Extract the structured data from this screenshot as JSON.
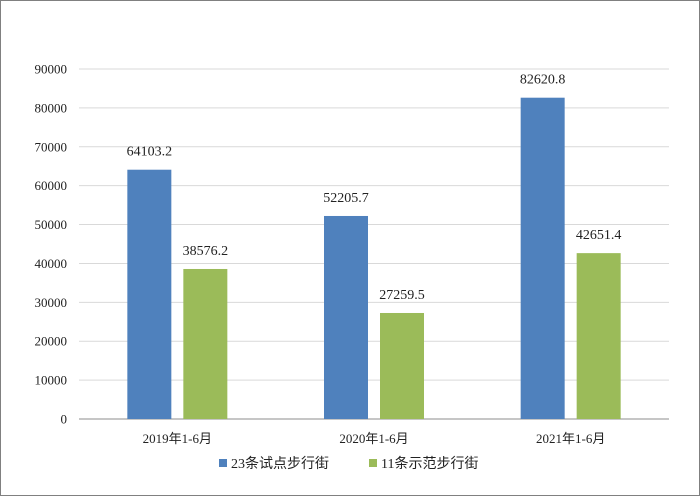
{
  "chart_data": {
    "type": "bar",
    "categories": [
      "2019年1-6月",
      "2020年1-6月",
      "2021年1-6月"
    ],
    "series": [
      {
        "name": "23条试点步行街",
        "values": [
          64103.2,
          52205.7,
          82620.8
        ],
        "color": "#4f81bd"
      },
      {
        "name": "11条示范步行街",
        "values": [
          38576.2,
          27259.5,
          42651.4
        ],
        "color": "#9bbb59"
      }
    ],
    "data_labels": [
      [
        "64103.2",
        "52205.7",
        "82620.8"
      ],
      [
        "38576.2",
        "27259.5",
        "42651.4"
      ]
    ],
    "yticks": [
      "0",
      "10000",
      "20000",
      "30000",
      "40000",
      "50000",
      "60000",
      "70000",
      "80000",
      "90000"
    ],
    "ylim": [
      0,
      90000
    ],
    "grid": true,
    "legend_position": "bottom"
  }
}
